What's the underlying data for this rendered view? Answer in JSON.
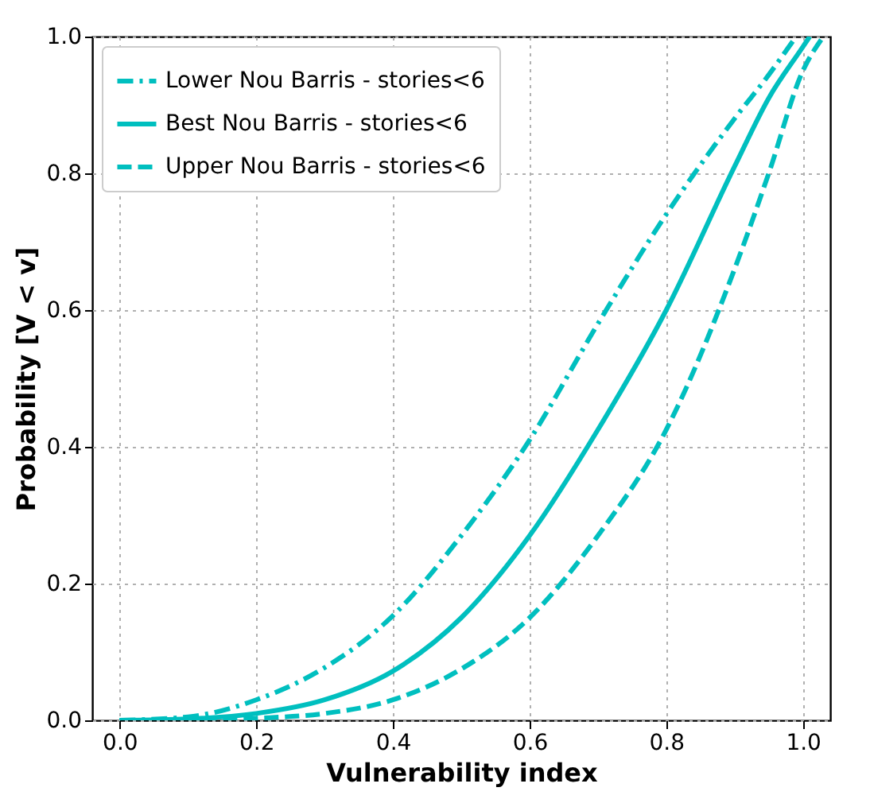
{
  "chart_data": {
    "type": "line",
    "xlabel": "Vulnerability index",
    "ylabel": "Probability [V < v]",
    "xlim": [
      -0.04,
      1.04
    ],
    "ylim": [
      0,
      1
    ],
    "xticks": [
      {
        "value": 0,
        "label": "0.0"
      },
      0.2,
      0.4,
      0.6,
      0.8,
      {
        "value": 1,
        "label": "1.0"
      }
    ],
    "yticks": [
      {
        "value": 0,
        "label": "0.0"
      },
      0.2,
      0.4,
      0.6,
      0.8,
      {
        "value": 1,
        "label": "1.0"
      }
    ],
    "grid": true,
    "legend": "top left",
    "marker": "none",
    "series": [
      {
        "name": "Lower Nou Barris - stories<6",
        "color": "#00bfbf",
        "line_style": "dashdot",
        "x": [
          0,
          0.1,
          0.2,
          0.3,
          0.4,
          0.5,
          0.6,
          0.7,
          0.8,
          0.9,
          0.95,
          0.99
        ],
        "values": [
          0,
          0.005,
          0.03,
          0.077,
          0.153,
          0.27,
          0.41,
          0.58,
          0.74,
          0.88,
          0.944,
          1.0
        ]
      },
      {
        "name": "Best Nou Barris - stories<6",
        "color": "#00bfbf",
        "line_style": "solid",
        "x": [
          0,
          0.1,
          0.2,
          0.3,
          0.4,
          0.5,
          0.6,
          0.7,
          0.8,
          0.9,
          0.95,
          1.0,
          1.01
        ],
        "values": [
          0,
          0.002,
          0.01,
          0.03,
          0.072,
          0.15,
          0.27,
          0.425,
          0.6,
          0.81,
          0.91,
          0.985,
          1.0
        ]
      },
      {
        "name": "Upper Nou Barris - stories<6",
        "color": "#00bfbf",
        "line_style": "dashed",
        "x": [
          0,
          0.1,
          0.2,
          0.3,
          0.4,
          0.5,
          0.6,
          0.7,
          0.8,
          0.9,
          0.95,
          1.0,
          1.03
        ],
        "values": [
          0,
          0,
          0.003,
          0.01,
          0.03,
          0.075,
          0.15,
          0.27,
          0.425,
          0.66,
          0.8,
          0.95,
          1.0
        ]
      }
    ]
  }
}
